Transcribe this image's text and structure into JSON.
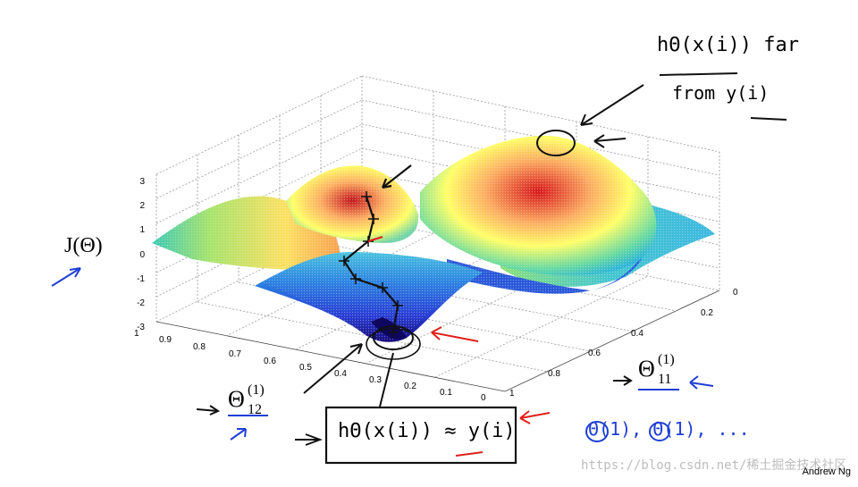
{
  "axes": {
    "z_label": "J(Θ)",
    "z_ticks": [
      "3",
      "2",
      "1",
      "0",
      "-1",
      "-2",
      "-3"
    ],
    "left_ticks": [
      "1",
      "0.9",
      "0.8",
      "0.7",
      "0.6",
      "0.5",
      "0.4",
      "0.3",
      "0.2",
      "0.1",
      "0"
    ],
    "right_ticks": [
      "0",
      "0.2",
      "0.4",
      "0.6",
      "0.8",
      "1"
    ],
    "theta12_label": "Θ",
    "theta12_sup": "(1)",
    "theta12_sub": "12",
    "theta11_label": "Θ",
    "theta11_sup": "(1)",
    "theta11_sub": "11"
  },
  "annotations": {
    "top_right_line1": "hΘ(x(i)) far",
    "top_right_line2": "from y(i)",
    "bottom_box": "hΘ(x(i)) ≈ y(i)",
    "bottom_right_list": "Θ(1), Θ(1), ..."
  },
  "colors": {
    "surface_peak": "#d7191c",
    "surface_mid": "#ffff33",
    "surface_low": "#2c7bb6",
    "surface_bottom": "#1a0d7a",
    "annotation_blue": "#1f3fd6",
    "annotation_red": "#e0201a"
  },
  "credit": "Andrew Ng",
  "watermark": "https://blog.csdn.net/稀土掘金技术社区"
}
